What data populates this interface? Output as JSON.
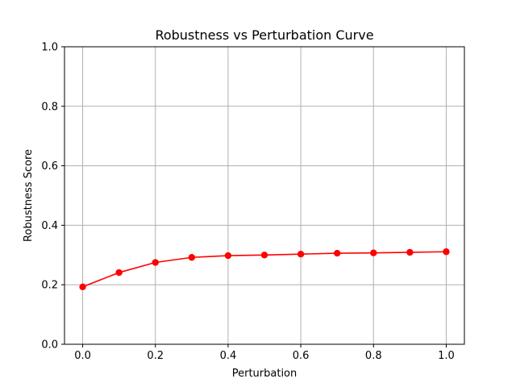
{
  "chart_data": {
    "type": "line",
    "title": "Robustness vs Perturbation Curve",
    "xlabel": "Perturbation",
    "ylabel": "Robustness Score",
    "xlim": [
      -0.05,
      1.05
    ],
    "ylim": [
      0.0,
      1.0
    ],
    "x_ticks": [
      "0.0",
      "0.2",
      "0.4",
      "0.6",
      "0.8",
      "1.0"
    ],
    "y_ticks": [
      "0.0",
      "0.2",
      "0.4",
      "0.6",
      "0.8",
      "1.0"
    ],
    "grid": true,
    "legend": "none",
    "series": [
      {
        "color": "#ff0000",
        "marker": "circle",
        "x": [
          0.0,
          0.1,
          0.2,
          0.3,
          0.4,
          0.5,
          0.6,
          0.7,
          0.8,
          0.9,
          1.0
        ],
        "y": [
          0.193,
          0.241,
          0.275,
          0.292,
          0.298,
          0.3,
          0.303,
          0.306,
          0.307,
          0.309,
          0.311
        ]
      }
    ]
  }
}
